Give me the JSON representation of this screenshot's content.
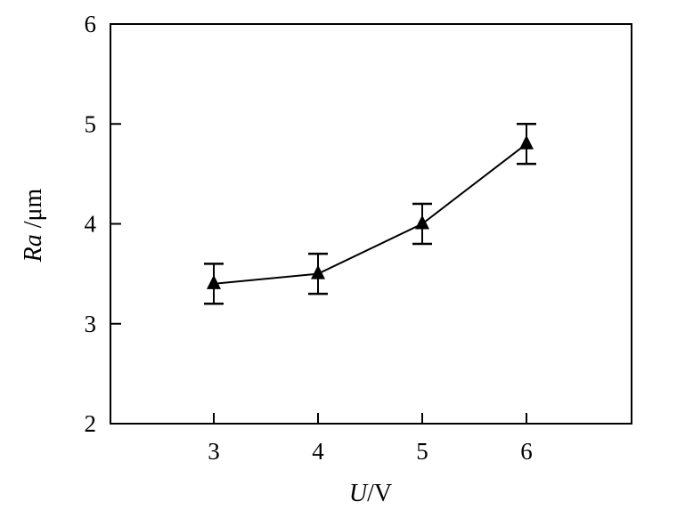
{
  "chart_data": {
    "type": "line",
    "title": "",
    "xlabel": {
      "var": "U",
      "unit": "/V"
    },
    "ylabel": {
      "var": "Ra",
      "unit": " /μm"
    },
    "x": [
      3,
      4,
      5,
      6
    ],
    "series": [
      {
        "values": [
          3.4,
          3.5,
          4.0,
          4.8
        ],
        "err_low": [
          3.2,
          3.3,
          3.8,
          4.6
        ],
        "err_high": [
          3.6,
          3.7,
          4.2,
          5.0
        ],
        "marker": "triangle"
      }
    ],
    "xticks": [
      "3",
      "4",
      "5",
      "6"
    ],
    "yticks": [
      "2",
      "3",
      "4",
      "5",
      "6"
    ],
    "ylim": [
      2,
      6
    ],
    "grid": false,
    "legend": "none",
    "colors": {
      "line": "#000000",
      "background": "#ffffff"
    }
  }
}
